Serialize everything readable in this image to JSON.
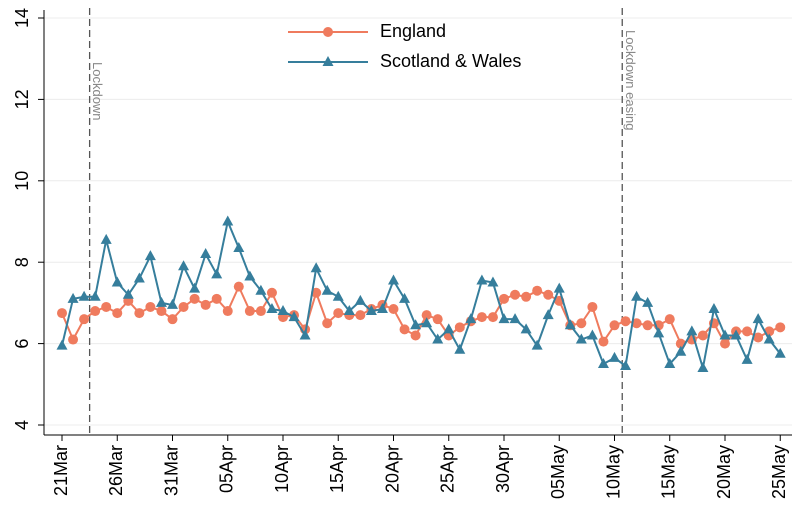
{
  "chart_data": {
    "type": "line",
    "categories": [
      "21Mar",
      null,
      null,
      null,
      null,
      "26Mar",
      null,
      null,
      null,
      null,
      "31Mar",
      null,
      null,
      null,
      null,
      "05Apr",
      null,
      null,
      null,
      null,
      "10Apr",
      null,
      null,
      null,
      null,
      "15Apr",
      null,
      null,
      null,
      null,
      "20Apr",
      null,
      null,
      null,
      null,
      "25Apr",
      null,
      null,
      null,
      null,
      "30Apr",
      null,
      null,
      null,
      null,
      "05May",
      null,
      null,
      null,
      null,
      "10May",
      null,
      null,
      null,
      null,
      "15May",
      null,
      null,
      null,
      null,
      "20May",
      null,
      null,
      null,
      null,
      "25May"
    ],
    "series": [
      {
        "name": "England",
        "color": "#ef7b5e",
        "marker": "circle",
        "values": [
          6.75,
          6.1,
          6.6,
          6.8,
          6.9,
          6.75,
          7.05,
          6.75,
          6.9,
          6.8,
          6.6,
          6.9,
          7.1,
          6.95,
          7.1,
          6.8,
          7.4,
          6.8,
          6.8,
          7.25,
          6.65,
          6.7,
          6.35,
          7.25,
          6.5,
          6.75,
          6.7,
          6.7,
          6.85,
          6.95,
          6.85,
          6.35,
          6.2,
          6.7,
          6.6,
          6.2,
          6.4,
          6.55,
          6.65,
          6.65,
          7.1,
          7.2,
          7.15,
          7.3,
          7.2,
          7.05,
          6.45,
          6.5,
          6.9,
          6.05,
          6.45,
          6.55,
          6.5,
          6.45,
          6.45,
          6.6,
          6.0,
          6.1,
          6.2,
          6.5,
          6.0,
          6.3,
          6.3,
          6.15,
          6.3,
          6.4
        ]
      },
      {
        "name": "Scotland & Wales",
        "color": "#367e9c",
        "marker": "triangle",
        "values": [
          5.95,
          7.1,
          7.15,
          7.15,
          8.55,
          7.5,
          7.2,
          7.6,
          8.15,
          7.0,
          6.95,
          7.9,
          7.35,
          8.2,
          7.7,
          9.0,
          8.35,
          7.65,
          7.3,
          6.85,
          6.8,
          6.65,
          6.2,
          7.85,
          7.3,
          7.15,
          6.8,
          7.05,
          6.8,
          6.85,
          7.55,
          7.1,
          6.45,
          6.5,
          6.1,
          6.35,
          5.85,
          6.6,
          7.55,
          7.5,
          6.6,
          6.6,
          6.35,
          5.95,
          6.7,
          7.35,
          6.45,
          6.1,
          6.2,
          5.5,
          5.65,
          5.45,
          7.15,
          7.0,
          6.25,
          5.5,
          5.8,
          6.3,
          5.4,
          6.85,
          6.2,
          6.2,
          5.6,
          6.6,
          6.1,
          5.75
        ]
      }
    ],
    "ylim": [
      4,
      14
    ],
    "yticks": [
      4,
      6,
      8,
      10,
      12,
      14
    ],
    "grid": true,
    "legend": "top",
    "annotations": [
      {
        "text": "Lockdown",
        "x": 2.5
      },
      {
        "text": "Lockdown easing",
        "x": 50.7
      }
    ]
  }
}
